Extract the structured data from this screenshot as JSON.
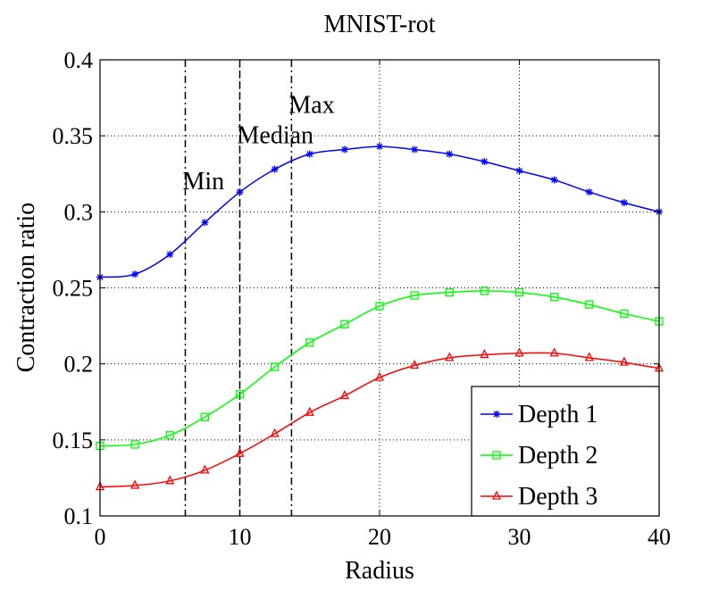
{
  "chart_data": {
    "type": "line",
    "title": "MNIST-rot",
    "xlabel": "Radius",
    "ylabel": "Contraction ratio",
    "xlim": [
      0,
      40
    ],
    "ylim": [
      0.1,
      0.4
    ],
    "xticks": [
      0,
      10,
      20,
      30,
      40
    ],
    "xtick_labels": [
      "0",
      "10",
      "20",
      "30",
      "40"
    ],
    "yticks": [
      0.1,
      0.15,
      0.2,
      0.25,
      0.3,
      0.35,
      0.4
    ],
    "ytick_labels": [
      "0.1",
      "0.15",
      "0.2",
      "0.25",
      "0.3",
      "0.35",
      "0.4"
    ],
    "grid": true,
    "legend_position": "bottom-right",
    "x": [
      0,
      2.5,
      5,
      7.5,
      10,
      12.5,
      15,
      17.5,
      20,
      22.5,
      25,
      27.5,
      30,
      32.5,
      35,
      37.5,
      40
    ],
    "series": [
      {
        "name": "Depth 1",
        "color": "#0000ff",
        "marker": "star",
        "values": [
          0.257,
          0.259,
          0.272,
          0.293,
          0.313,
          0.328,
          0.338,
          0.341,
          0.343,
          0.341,
          0.338,
          0.333,
          0.327,
          0.321,
          0.313,
          0.306,
          0.3
        ]
      },
      {
        "name": "Depth 2",
        "color": "#00ff00",
        "marker": "square",
        "values": [
          0.146,
          0.147,
          0.153,
          0.165,
          0.18,
          0.198,
          0.214,
          0.226,
          0.238,
          0.245,
          0.247,
          0.248,
          0.247,
          0.244,
          0.239,
          0.233,
          0.228
        ]
      },
      {
        "name": "Depth 3",
        "color": "#ff0000",
        "marker": "triangle",
        "values": [
          0.119,
          0.12,
          0.123,
          0.13,
          0.141,
          0.154,
          0.168,
          0.179,
          0.191,
          0.199,
          0.204,
          0.206,
          0.207,
          0.207,
          0.204,
          0.201,
          0.197
        ]
      }
    ],
    "vlines": [
      {
        "x": 6.1,
        "label": "Min",
        "style": "dash-dot",
        "label_y": 0.315
      },
      {
        "x": 10.0,
        "label": "Median",
        "style": "dashed",
        "label_y": 0.345
      },
      {
        "x": 13.7,
        "label": "Max",
        "style": "dash-dot",
        "label_y": 0.365
      }
    ]
  }
}
